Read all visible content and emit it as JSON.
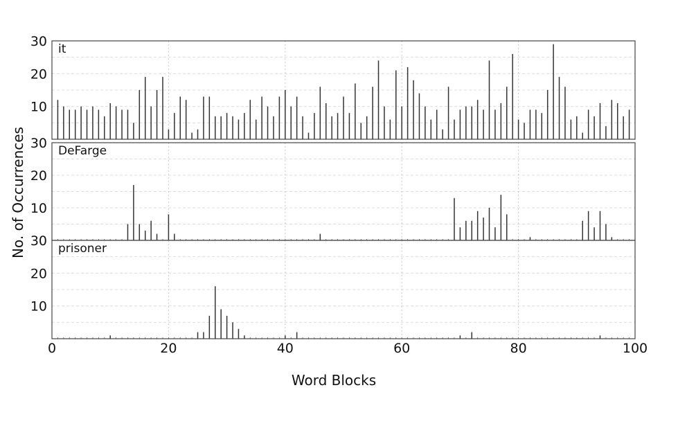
{
  "chart_data": {
    "type": "bar",
    "xlabel": "Word Blocks",
    "ylabel": "No. of Occurrences",
    "xlim": [
      0,
      100
    ],
    "ylim": [
      0,
      30
    ],
    "x_ticks": [
      0,
      20,
      40,
      60,
      80,
      100
    ],
    "y_ticks": [
      10,
      20,
      30
    ],
    "grid": true,
    "panels": [
      {
        "name": "it",
        "x": [
          1,
          2,
          3,
          4,
          5,
          6,
          7,
          8,
          9,
          10,
          11,
          12,
          13,
          14,
          15,
          16,
          17,
          18,
          19,
          20,
          21,
          22,
          23,
          24,
          25,
          26,
          27,
          28,
          29,
          30,
          31,
          32,
          33,
          34,
          35,
          36,
          37,
          38,
          39,
          40,
          41,
          42,
          43,
          44,
          45,
          46,
          47,
          48,
          49,
          50,
          51,
          52,
          53,
          54,
          55,
          56,
          57,
          58,
          59,
          60,
          61,
          62,
          63,
          64,
          65,
          66,
          67,
          68,
          69,
          70,
          71,
          72,
          73,
          74,
          75,
          76,
          77,
          78,
          79,
          80,
          81,
          82,
          83,
          84,
          85,
          86,
          87,
          88,
          89,
          90,
          91,
          92,
          93,
          94,
          95,
          96,
          97,
          98,
          99
        ],
        "values": [
          12,
          10,
          9,
          9,
          10,
          9,
          10,
          9,
          7,
          11,
          10,
          9,
          9,
          5,
          15,
          19,
          10,
          15,
          19,
          3,
          8,
          13,
          12,
          2,
          3,
          13,
          13,
          7,
          7,
          8,
          7,
          6,
          8,
          12,
          6,
          13,
          10,
          7,
          13,
          15,
          10,
          13,
          7,
          2,
          8,
          16,
          11,
          7,
          8,
          13,
          8,
          17,
          5,
          7,
          16,
          24,
          10,
          6,
          21,
          10,
          22,
          18,
          14,
          10,
          6,
          9,
          3,
          16,
          6,
          9,
          10,
          10,
          12,
          9,
          24,
          9,
          11,
          16,
          26,
          6,
          5,
          9,
          9,
          8,
          15,
          29,
          19,
          16,
          6,
          7,
          2,
          9,
          7,
          11,
          4,
          12,
          11,
          7,
          9
        ]
      },
      {
        "name": "DeFarge",
        "x": [
          13,
          14,
          15,
          16,
          17,
          18,
          20,
          21,
          46,
          69,
          70,
          71,
          72,
          73,
          74,
          75,
          76,
          77,
          78,
          82,
          91,
          92,
          93,
          94,
          95,
          96
        ],
        "values": [
          5,
          17,
          5,
          3,
          6,
          2,
          8,
          2,
          2,
          13,
          4,
          6,
          6,
          9,
          7,
          10,
          4,
          14,
          8,
          1,
          6,
          9,
          4,
          9,
          5,
          1
        ]
      },
      {
        "name": "prisoner",
        "x": [
          10,
          25,
          26,
          27,
          28,
          29,
          30,
          31,
          32,
          33,
          40,
          42,
          70,
          72,
          94
        ],
        "values": [
          1,
          2,
          2,
          7,
          16,
          9,
          7,
          5,
          3,
          1,
          1,
          2,
          1,
          2,
          1
        ]
      }
    ]
  }
}
